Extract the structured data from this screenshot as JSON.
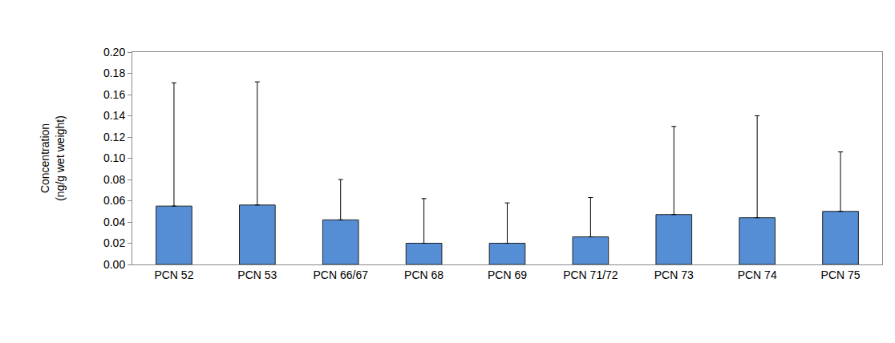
{
  "chart_data": {
    "type": "bar",
    "y_label": "Concentration\n(ng/g wet weight)",
    "categories": [
      "PCN 52",
      "PCN 53",
      "PCN 66/67",
      "PCN 68",
      "PCN 69",
      "PCN 71/72",
      "PCN 73",
      "PCN 74",
      "PCN 75"
    ],
    "values": [
      0.055,
      0.056,
      0.042,
      0.02,
      0.02,
      0.026,
      0.047,
      0.044,
      0.05
    ],
    "errors": [
      0.116,
      0.116,
      0.038,
      0.042,
      0.038,
      0.037,
      0.083,
      0.096,
      0.056
    ],
    "color": "#558ed5",
    "ylim": [
      0,
      0.2
    ],
    "yticks": [
      {
        "value": 0,
        "label": "0.00"
      },
      {
        "value": 0.02,
        "label": "0.02"
      },
      {
        "value": 0.04,
        "label": "0.04"
      },
      {
        "value": 0.06,
        "label": "0.06"
      },
      {
        "value": 0.08,
        "label": "0.08"
      },
      {
        "value": 0.1,
        "label": "0.10"
      },
      {
        "value": 0.12,
        "label": "0.12"
      },
      {
        "value": 0.14,
        "label": "0.14"
      },
      {
        "value": 0.16,
        "label": "0.16"
      },
      {
        "value": 0.18,
        "label": "0.18"
      },
      {
        "value": 0.2,
        "label": "0.20"
      }
    ],
    "grid": false
  }
}
